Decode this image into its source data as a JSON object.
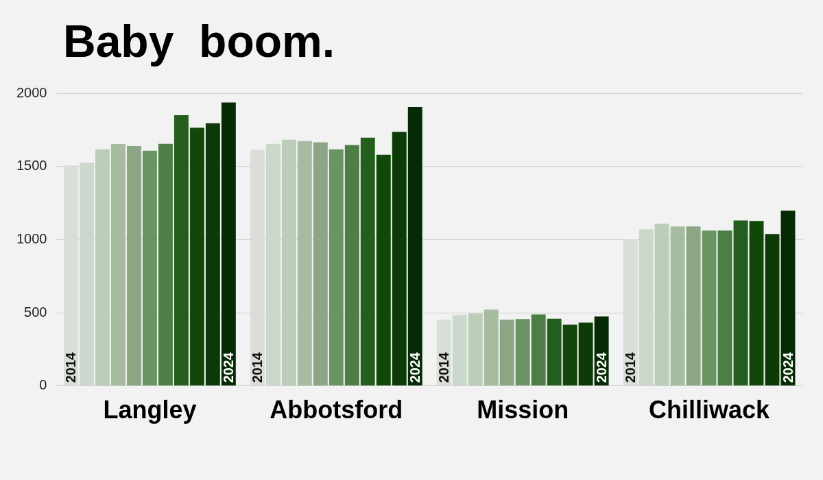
{
  "chart_data": {
    "type": "bar",
    "title": "Baby  boom.",
    "categories": [
      "Langley",
      "Abbotsford",
      "Mission",
      "Chilliwack"
    ],
    "series": [
      {
        "name": "2014",
        "color": "#d9dfd7",
        "values": [
          1507,
          1614,
          452,
          1000
        ]
      },
      {
        "color": "#cbd8cb",
        "values": [
          1526,
          1654,
          484,
          1071
        ]
      },
      {
        "color": "#bccdb9",
        "values": [
          1617,
          1682,
          495,
          1108
        ]
      },
      {
        "color": "#a6bca1",
        "values": [
          1653,
          1673,
          521,
          1090
        ]
      },
      {
        "color": "#8ca585",
        "values": [
          1639,
          1665,
          452,
          1090
        ]
      },
      {
        "color": "#6a9563",
        "values": [
          1607,
          1617,
          457,
          1062
        ]
      },
      {
        "color": "#4c7e45",
        "values": [
          1654,
          1646,
          489,
          1062
        ]
      },
      {
        "color": "#245e1c",
        "values": [
          1850,
          1696,
          460,
          1131
        ]
      },
      {
        "color": "#114809",
        "values": [
          1764,
          1579,
          418,
          1127
        ]
      },
      {
        "color": "#0c3b07",
        "values": [
          1795,
          1736,
          432,
          1038
        ]
      },
      {
        "name": "2024",
        "color": "#062a03",
        "values": [
          1937,
          1906,
          475,
          1197
        ]
      }
    ],
    "ylim": [
      0,
      2000
    ],
    "yticks": [
      0,
      500,
      1000,
      1500,
      2000
    ],
    "grid": "y",
    "legend": false
  }
}
